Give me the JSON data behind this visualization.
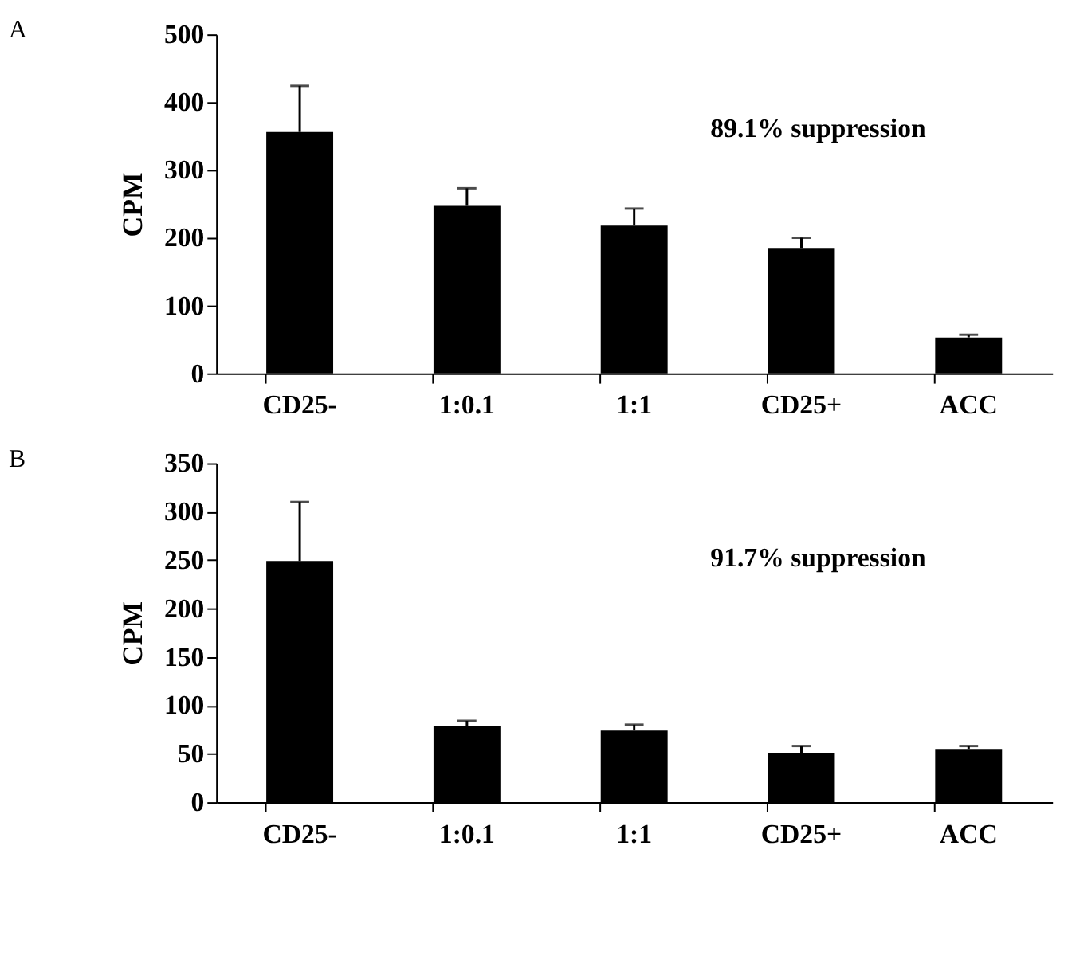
{
  "chart_data": [
    {
      "type": "bar",
      "title": "A",
      "ylabel": "CPM",
      "categories": [
        "CD25-",
        "1:0.1",
        "1:1",
        "CD25+",
        "ACC"
      ],
      "series": [
        {
          "color": "#000000",
          "values": [
            356,
            247,
            218,
            185,
            53
          ],
          "errors": [
            [
              356,
              424
            ],
            [
              247,
              273
            ],
            [
              218,
              243
            ],
            [
              185,
              200
            ],
            [
              53,
              57
            ]
          ]
        }
      ],
      "ylim": [
        0,
        500
      ],
      "yticks": [
        0,
        100,
        200,
        300,
        400,
        500
      ],
      "grid": false,
      "annotations": [
        "89.1% suppression"
      ]
    },
    {
      "type": "bar",
      "title": "B",
      "ylabel": "CPM",
      "categories": [
        "CD25-",
        "1:0.1",
        "1:1",
        "CD25+",
        "ACC"
      ],
      "series": [
        {
          "color": "#000000",
          "values": [
            249,
            79,
            74,
            51,
            55
          ],
          "errors": [
            [
              249,
              310
            ],
            [
              79,
              84
            ],
            [
              74,
              80
            ],
            [
              51,
              58
            ],
            [
              55,
              58
            ]
          ]
        }
      ],
      "ylim": [
        0,
        350
      ],
      "yticks": [
        0,
        50,
        100,
        150,
        200,
        250,
        300,
        350
      ],
      "grid": false,
      "annotations": [
        "91.7% suppression"
      ]
    }
  ]
}
